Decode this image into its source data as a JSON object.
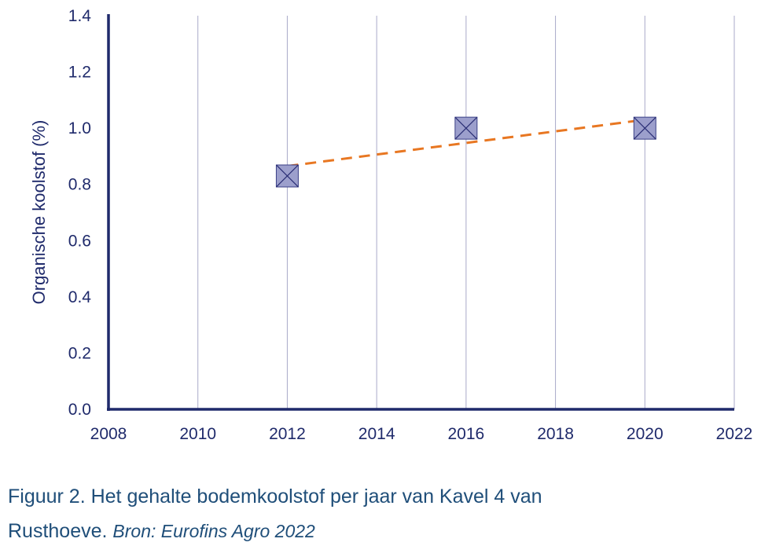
{
  "chart_data": {
    "type": "scatter",
    "ylabel": "Organische koolstof (%)",
    "xlabel": "",
    "xlim": [
      2008,
      2022
    ],
    "ylim": [
      0,
      1.4
    ],
    "x_ticks": [
      "2008",
      "2010",
      "2012",
      "2014",
      "2016",
      "2018",
      "2020",
      "2022"
    ],
    "y_ticks": [
      "0.0",
      "0.2",
      "0.4",
      "0.6",
      "0.8",
      "1.0",
      "1.2",
      "1.4"
    ],
    "grid": "vertical",
    "series": [
      {
        "points": [
          {
            "x": 2012,
            "y": 0.83
          },
          {
            "x": 2016,
            "y": 1.0
          },
          {
            "x": 2020,
            "y": 1.0
          }
        ],
        "color": "#9c9fcc",
        "marker": "square-x"
      }
    ],
    "trendline": {
      "type": "linear",
      "style": "dashed",
      "color": "#e87722",
      "from": {
        "x": 2012,
        "y": 0.865
      },
      "to": {
        "x": 2020,
        "y": 1.03
      }
    }
  },
  "caption": {
    "line1": "Figuur 2. Het gehalte bodemkoolstof per jaar van Kavel 4 van",
    "line2_main": "Rusthoeve.",
    "line2_source": "Bron: Eurofins Agro 2022"
  },
  "colors": {
    "axis": "#1f2a6b",
    "grid": "#a9aac9",
    "text": "#1f4e79"
  }
}
